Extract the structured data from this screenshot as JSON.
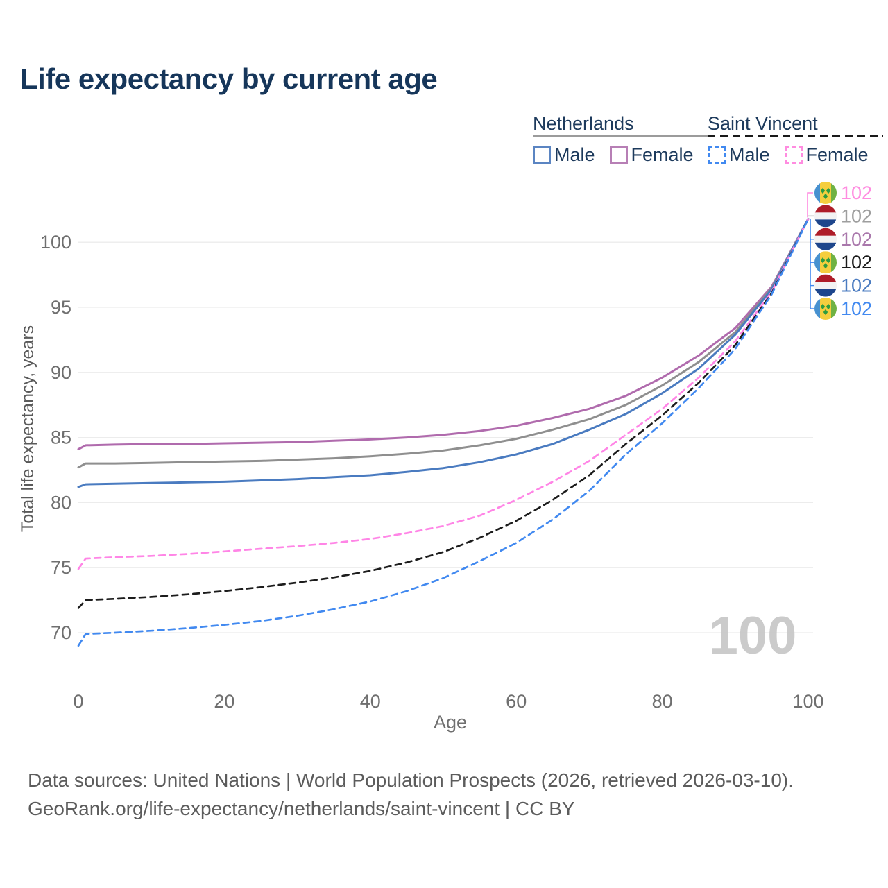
{
  "title": "Life expectancy by current age",
  "legend": {
    "groups": [
      {
        "name": "Netherlands",
        "line_style": "solid",
        "line_color": "#9b9b9b",
        "items": [
          {
            "label": "Male",
            "color": "#5b85c2",
            "dash": "solid"
          },
          {
            "label": "Female",
            "color": "#b77fb5",
            "dash": "solid"
          }
        ]
      },
      {
        "name": "Saint Vincent",
        "line_style": "dashed",
        "line_color": "#1a1a1a",
        "items": [
          {
            "label": "Male",
            "color": "#4189f0",
            "dash": "dashed"
          },
          {
            "label": "Female",
            "color": "#ff8ce0",
            "dash": "dashed"
          }
        ]
      }
    ]
  },
  "chart_data": {
    "type": "line",
    "title": "Life expectancy by current age",
    "xlabel": "Age",
    "ylabel": "Total life expectancy, years",
    "xticks": [
      0,
      20,
      40,
      60,
      80,
      100
    ],
    "yticks": [
      70,
      75,
      80,
      85,
      90,
      95,
      100
    ],
    "xlim": [
      0,
      100
    ],
    "ylim": [
      68.5,
      103
    ],
    "grid": "horizontal-only",
    "legend_position": "top-right",
    "watermark_age": "100",
    "x": [
      0,
      1,
      5,
      10,
      15,
      20,
      25,
      30,
      35,
      40,
      45,
      50,
      55,
      60,
      65,
      70,
      75,
      80,
      85,
      90,
      95,
      100
    ],
    "series": [
      {
        "name": "Netherlands Female",
        "country": "netherlands",
        "sex": "female",
        "color": "#b06bad",
        "dash": "solid",
        "values": [
          84.1,
          84.4,
          84.45,
          84.5,
          84.5,
          84.55,
          84.6,
          84.65,
          84.75,
          84.85,
          85.0,
          85.2,
          85.5,
          85.9,
          86.5,
          87.2,
          88.2,
          89.6,
          91.3,
          93.4,
          96.6,
          101.8
        ]
      },
      {
        "name": "Netherlands",
        "country": "netherlands",
        "sex": "both",
        "color": "#8f8f8f",
        "dash": "solid",
        "values": [
          82.7,
          83.0,
          83.0,
          83.05,
          83.1,
          83.15,
          83.2,
          83.3,
          83.4,
          83.55,
          83.75,
          84.0,
          84.4,
          84.9,
          85.6,
          86.4,
          87.5,
          89.0,
          90.8,
          93.1,
          96.5,
          101.8
        ]
      },
      {
        "name": "Netherlands Male",
        "country": "netherlands",
        "sex": "male",
        "color": "#4a7bc0",
        "dash": "solid",
        "values": [
          81.2,
          81.4,
          81.45,
          81.5,
          81.55,
          81.6,
          81.7,
          81.8,
          81.95,
          82.1,
          82.35,
          82.65,
          83.1,
          83.7,
          84.5,
          85.6,
          86.8,
          88.4,
          90.3,
          92.9,
          96.4,
          101.8
        ]
      },
      {
        "name": "Saint Vincent Female",
        "country": "saint-vincent",
        "sex": "female",
        "color": "#ff85e6",
        "dash": "dashed",
        "values": [
          74.9,
          75.7,
          75.8,
          75.9,
          76.05,
          76.25,
          76.45,
          76.65,
          76.9,
          77.2,
          77.65,
          78.2,
          79.0,
          80.2,
          81.6,
          83.2,
          85.2,
          87.2,
          89.6,
          92.4,
          96.2,
          101.8
        ]
      },
      {
        "name": "Saint Vincent",
        "country": "saint-vincent",
        "sex": "both",
        "color": "#1c1c1c",
        "dash": "dashed",
        "values": [
          71.9,
          72.5,
          72.6,
          72.75,
          72.95,
          73.2,
          73.5,
          73.85,
          74.25,
          74.75,
          75.4,
          76.2,
          77.3,
          78.6,
          80.2,
          82.1,
          84.5,
          86.7,
          89.2,
          92.1,
          96.1,
          101.8
        ]
      },
      {
        "name": "Saint Vincent Male",
        "country": "saint-vincent",
        "sex": "male",
        "color": "#4189f0",
        "dash": "dashed",
        "values": [
          69.0,
          69.9,
          70.0,
          70.15,
          70.35,
          70.6,
          70.9,
          71.3,
          71.8,
          72.4,
          73.2,
          74.2,
          75.5,
          76.9,
          78.7,
          80.9,
          83.7,
          86.1,
          88.8,
          91.8,
          96.0,
          101.8
        ]
      }
    ],
    "end_labels": [
      {
        "flag": "saint-vincent",
        "value": "102",
        "color": "#ff8ce0",
        "series": "Saint Vincent Female"
      },
      {
        "flag": "netherlands",
        "value": "102",
        "color": "#9e9e9e",
        "series": "Netherlands"
      },
      {
        "flag": "netherlands",
        "value": "102",
        "color": "#a977ab",
        "series": "Netherlands Female"
      },
      {
        "flag": "saint-vincent",
        "value": "102",
        "color": "#1a1a1a",
        "series": "Saint Vincent"
      },
      {
        "flag": "netherlands",
        "value": "102",
        "color": "#4a7bc0",
        "series": "Netherlands Male"
      },
      {
        "flag": "saint-vincent",
        "value": "102",
        "color": "#4189f0",
        "series": "Saint Vincent Male"
      }
    ]
  },
  "footer": {
    "line1": "Data sources: United Nations | World Population Prospects (2026, retrieved 2026-03-10).",
    "line2": "GeoRank.org/life-expectancy/netherlands/saint-vincent | CC BY"
  }
}
